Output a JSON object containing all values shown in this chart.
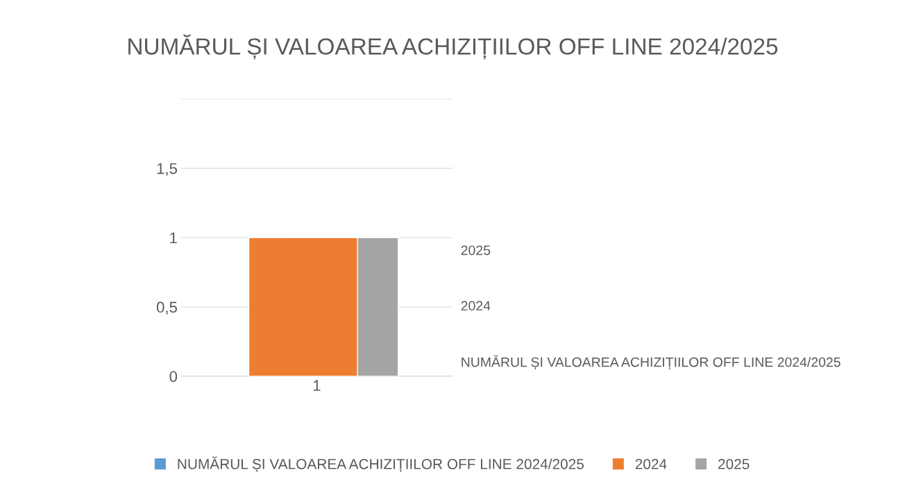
{
  "chart_data": {
    "type": "bar",
    "title": "NUMĂRUL ȘI VALOAREA ACHIZIȚIILOR OFF LINE 2024/2025",
    "categories": [
      "1"
    ],
    "series": [
      {
        "name": "NUMĂRUL ȘI VALOAREA ACHIZIȚIILOR OFF LINE 2024/2025",
        "color": "#5b9bd5",
        "values": [
          null
        ]
      },
      {
        "name": "2024",
        "color": "#ed7d31",
        "values": [
          1
        ]
      },
      {
        "name": "2025",
        "color": "#a5a5a5",
        "values": [
          1
        ]
      }
    ],
    "ylim": [
      0,
      2
    ],
    "yticks": [
      0,
      {
        "value": 0.5,
        "label": "0,5"
      },
      1,
      {
        "value": 1.5,
        "label": "1,5"
      },
      {
        "value": 2,
        "label": null
      }
    ],
    "grid": "y",
    "legend": "bottom"
  }
}
